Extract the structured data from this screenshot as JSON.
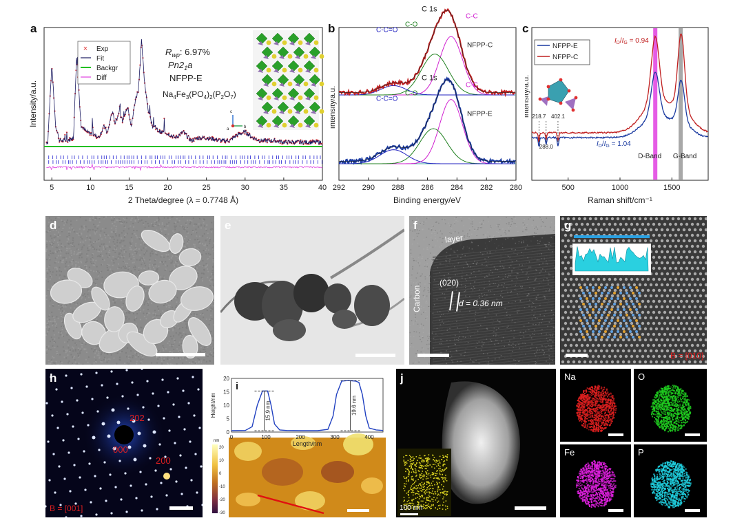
{
  "panels": {
    "a": "a",
    "b": "b",
    "c": "c",
    "d": "d",
    "e": "e",
    "f": "f",
    "g": "g",
    "h": "h",
    "i": "i",
    "j": "j"
  },
  "panel_a": {
    "rwp_label": "R",
    "rwp_sub": "wp",
    "rwp_value": ": 6.97%",
    "space_group": "Pn2",
    "space_group_sub": "1",
    "space_group_end": "a",
    "sample": "NFPP-E",
    "formula_parts": [
      "Na",
      "4",
      "Fe",
      "3",
      "(PO",
      "4",
      ")",
      "2",
      "(P",
      "2",
      "O",
      "7",
      ")"
    ],
    "axis_c": "c",
    "axis_a": "a",
    "axis_b": "b"
  },
  "panel_f": {
    "layer": "layer",
    "carbon": "Carbon",
    "plane": "(020)",
    "d_label": "d = 0.36 nm"
  },
  "panel_g": {
    "zone": "B = [010]"
  },
  "panel_h": {
    "spot_202": "202",
    "spot_000": "000",
    "spot_200": "200",
    "zone": "B = [001]"
  },
  "panel_i": {
    "colorbar_unit": "nm",
    "colorbar_ticks": [
      "20",
      "10",
      "0",
      "-10",
      "-20",
      "-30"
    ]
  },
  "panel_j": {
    "inset_scale": "100 nm"
  },
  "eds_labels": {
    "na": "Na",
    "o": "O",
    "fe": "Fe",
    "p": "P"
  },
  "colors": {
    "exp": "#e03030",
    "fit": "#1a1a60",
    "backgr": "#22c022",
    "diff": "#e040e0",
    "bragg": "#2020d0",
    "c_c": "#d020d0",
    "c_o": "#208020",
    "c_c_o": "#2020c0",
    "nfpp_e": "#1a3aa0",
    "nfpp_c": "#c02020"
  },
  "chart_data": [
    {
      "type": "line",
      "panel": "a",
      "xlabel": "2 Theta/degree (λ = 0.7748 Å)",
      "ylabel": "Intensity/a.u.",
      "xlim": [
        4,
        40
      ],
      "xticks": [
        5,
        10,
        15,
        20,
        25,
        30,
        35,
        40
      ],
      "legend": [
        "Exp",
        "Fit",
        "Backgr",
        "Diff"
      ],
      "legend_position": "top-left",
      "series": [
        {
          "name": "Exp",
          "x": [
            4.5,
            5.0,
            5.5,
            6,
            7,
            7.8,
            8.2,
            8.8,
            9.5,
            10.5,
            11,
            11.8,
            12.2,
            12.8,
            13.2,
            13.7,
            14.2,
            14.8,
            15.3,
            15.8,
            16.2,
            16.6,
            17.0,
            17.5,
            18,
            19,
            20,
            21,
            22,
            23,
            24,
            25,
            26,
            27,
            28,
            29,
            30,
            31,
            32,
            33,
            34,
            35,
            36,
            37,
            38,
            39,
            40
          ],
          "y": [
            0.22,
            0.72,
            0.3,
            0.2,
            0.2,
            0.22,
            0.78,
            0.3,
            0.26,
            0.24,
            0.22,
            0.3,
            0.25,
            0.4,
            0.32,
            0.4,
            0.33,
            0.44,
            0.3,
            0.48,
            0.55,
            0.88,
            0.6,
            0.4,
            0.3,
            0.26,
            0.25,
            0.22,
            0.26,
            0.2,
            0.22,
            0.22,
            0.21,
            0.2,
            0.2,
            0.24,
            0.26,
            0.22,
            0.2,
            0.2,
            0.2,
            0.19,
            0.19,
            0.19,
            0.19,
            0.19,
            0.19
          ]
        },
        {
          "name": "Backgr",
          "x": [
            4,
            40
          ],
          "y": [
            0.16,
            0.16
          ]
        }
      ],
      "bragg_rows": 2
    },
    {
      "type": "line",
      "panel": "b",
      "xlabel": "Binding energy/eV",
      "ylabel": "Intensity/a.u.",
      "xlim": [
        292,
        280
      ],
      "xticks": [
        292,
        290,
        288,
        286,
        284,
        282,
        280
      ],
      "spectra": [
        {
          "name": "NFPP-C",
          "title": "C 1s",
          "components": [
            "C-C=O",
            "C-O",
            "C-C"
          ],
          "peaks": [
            {
              "label": "C-C",
              "center": 284.4,
              "height": 0.5,
              "width": 1.1
            },
            {
              "label": "C-O",
              "center": 285.5,
              "height": 0.35,
              "width": 1.3
            },
            {
              "label": "C-C=O",
              "center": 288.3,
              "height": 0.08,
              "width": 1.2
            }
          ]
        },
        {
          "name": "NFPP-E",
          "title": "C 1s",
          "components": [
            "C-C=O",
            "C-O",
            "C-C"
          ],
          "peaks": [
            {
              "label": "C-C",
              "center": 284.4,
              "height": 0.55,
              "width": 1.1
            },
            {
              "label": "C-O",
              "center": 285.6,
              "height": 0.3,
              "width": 1.3
            },
            {
              "label": "C-C=O",
              "center": 288.3,
              "height": 0.12,
              "width": 1.3
            }
          ]
        }
      ]
    },
    {
      "type": "line",
      "panel": "c",
      "xlabel": "Raman shift/cm⁻¹",
      "ylabel": "Intensity/a.u.",
      "xlim": [
        150,
        1850
      ],
      "xticks": [
        500,
        1000,
        1500
      ],
      "legend": [
        "NFPP-E",
        "NFPP-C"
      ],
      "legend_position": "top-left",
      "ratio_c": "0.94",
      "ratio_e": "1.04",
      "ratio_label": "I",
      "ratio_sub_d": "D",
      "ratio_sub_g": "G",
      "bands": [
        {
          "label": "D-Band",
          "center": 1340
        },
        {
          "label": "G-Band",
          "center": 1585
        }
      ],
      "peaks_low": [
        "218.7",
        "288.0",
        "402.1"
      ]
    },
    {
      "type": "line",
      "panel": "i",
      "xlabel": "Length/nm",
      "ylabel": "Height/nm",
      "xlim": [
        0,
        440
      ],
      "ylim": [
        0,
        20
      ],
      "xticks": [
        0,
        100,
        200,
        300,
        400
      ],
      "yticks": [
        0,
        5,
        10,
        15,
        20
      ],
      "x": [
        0,
        40,
        60,
        75,
        90,
        105,
        115,
        125,
        140,
        160,
        200,
        250,
        280,
        295,
        305,
        320,
        340,
        360,
        370,
        380,
        390,
        400,
        420,
        440
      ],
      "y": [
        0.5,
        0.6,
        2,
        10,
        15.3,
        15.3,
        10,
        3,
        0.8,
        0.6,
        0.5,
        0.5,
        1,
        6,
        14,
        19.0,
        19.2,
        19.0,
        18.5,
        14,
        6,
        1.5,
        0.8,
        0.6
      ],
      "annotations": [
        "15.9 nm",
        "19.6 nm"
      ]
    }
  ]
}
